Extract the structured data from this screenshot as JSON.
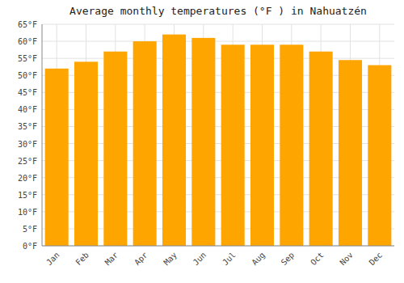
{
  "chart_data": {
    "type": "bar",
    "title": "Average monthly temperatures (°F ) in Nahuatzén",
    "categories": [
      "Jan",
      "Feb",
      "Mar",
      "Apr",
      "May",
      "Jun",
      "Jul",
      "Aug",
      "Sep",
      "Oct",
      "Nov",
      "Dec"
    ],
    "values": [
      52,
      54,
      57,
      60,
      62,
      61,
      59,
      59,
      59,
      57,
      54.5,
      53
    ],
    "color": "#FFA500",
    "ylim": [
      0,
      65
    ],
    "yticks": [
      {
        "value": 0,
        "label": "0°F"
      },
      {
        "value": 5,
        "label": "5°F"
      },
      {
        "value": 10,
        "label": "10°F"
      },
      {
        "value": 15,
        "label": "15°F"
      },
      {
        "value": 20,
        "label": "20°F"
      },
      {
        "value": 25,
        "label": "25°F"
      },
      {
        "value": 30,
        "label": "30°F"
      },
      {
        "value": 35,
        "label": "35°F"
      },
      {
        "value": 40,
        "label": "40°F"
      },
      {
        "value": 45,
        "label": "45°F"
      },
      {
        "value": 50,
        "label": "50°F"
      },
      {
        "value": 55,
        "label": "55°F"
      },
      {
        "value": 60,
        "label": "60°F"
      },
      {
        "value": 65,
        "label": "65°F"
      }
    ],
    "grid": true
  }
}
